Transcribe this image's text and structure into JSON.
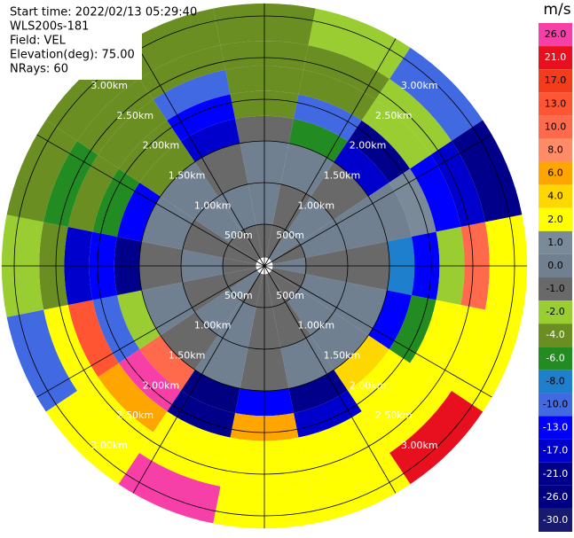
{
  "chart_data": {
    "type": "ppi",
    "header": [
      "Start time: 2022/02/13 05:29:40",
      "WLS200s-181",
      "Field: VEL",
      "Elevation(deg): 75.00",
      "NRays: 60"
    ],
    "colorbar_title": "m/s",
    "range_rings": [
      {
        "value": 0.5,
        "label": "500m"
      },
      {
        "value": 1.0,
        "label": "1.00km"
      },
      {
        "value": 1.5,
        "label": "1.50km"
      },
      {
        "value": 2.0,
        "label": "2.00km"
      },
      {
        "value": 2.5,
        "label": "2.50km"
      },
      {
        "value": 3.0,
        "label": "3.00km"
      }
    ],
    "gates_km": [
      0.1,
      0.5,
      1.0,
      1.5,
      1.8,
      2.1,
      2.4,
      2.7,
      3.15
    ],
    "values": [
      [
        -1,
        -1,
        0,
        -1,
        0,
        -1,
        -1,
        -1,
        -1,
        -1,
        0,
        -1,
        -1,
        -1,
        -1,
        -1
      ],
      [
        0,
        -1,
        0,
        0,
        -1,
        0,
        0,
        -1,
        -1,
        0,
        0,
        -1,
        0,
        -1,
        0,
        0
      ],
      [
        0,
        0,
        -1,
        0,
        -1,
        0,
        0,
        0,
        -1,
        0,
        -1,
        0,
        -1,
        0,
        0,
        -1
      ],
      [
        -1,
        -6,
        -17,
        0,
        -8,
        -13,
        4,
        -21,
        -13,
        -26,
        10,
        -2,
        -21,
        -13,
        -4,
        -17
      ],
      [
        -4,
        -10,
        -21,
        1,
        -13,
        -6,
        2,
        -17,
        6,
        -21,
        26,
        -10,
        -13,
        -6,
        -4,
        -13
      ],
      [
        -4,
        -4,
        -2,
        -13,
        -2,
        2,
        2,
        2,
        2,
        2,
        6,
        13,
        -17,
        -4,
        -4,
        -10
      ],
      [
        -4,
        -4,
        -2,
        -17,
        10,
        2,
        2,
        2,
        2,
        2,
        2,
        2,
        -4,
        -6,
        -4,
        -4
      ],
      [
        -4,
        -2,
        -10,
        -21,
        2,
        2,
        21,
        2,
        2,
        26,
        2,
        -10,
        -2,
        -4,
        -4,
        -4
      ]
    ],
    "colorbar": {
      "ticks": [
        {
          "value": 26,
          "label": "26.0"
        },
        {
          "value": 21,
          "label": "21.0"
        },
        {
          "value": 17,
          "label": "17.0"
        },
        {
          "value": 13,
          "label": "13.0"
        },
        {
          "value": 10,
          "label": "10.0"
        },
        {
          "value": 8,
          "label": "8.0"
        },
        {
          "value": 6,
          "label": "6.0"
        },
        {
          "value": 4,
          "label": "4.0"
        },
        {
          "value": 2,
          "label": "2.0"
        },
        {
          "value": 1,
          "label": "1.0"
        },
        {
          "value": 0,
          "label": "0.0"
        },
        {
          "value": -1,
          "label": "-1.0"
        },
        {
          "value": -2,
          "label": "-2.0"
        },
        {
          "value": -4,
          "label": "-4.0"
        },
        {
          "value": -6,
          "label": "-6.0"
        },
        {
          "value": -8,
          "label": "-8.0"
        },
        {
          "value": -10,
          "label": "-10.0"
        },
        {
          "value": -13,
          "label": "-13.0"
        },
        {
          "value": -17,
          "label": "-17.0"
        },
        {
          "value": -21,
          "label": "-21.0"
        },
        {
          "value": -26,
          "label": "-26.0"
        },
        {
          "value": -30,
          "label": "-30.0"
        }
      ],
      "colors": [
        "#f73fa8",
        "#e8101e",
        "#f23c1c",
        "#ff5533",
        "#ff6a4d",
        "#ff8c66",
        "#ffa500",
        "#ffd700",
        "#ffff00",
        "#7a8a99",
        "#708090",
        "#696969",
        "#9acd32",
        "#6b8e23",
        "#228b22",
        "#1e7fcc",
        "#4169e1",
        "#0000ff",
        "#0000cd",
        "#00008b",
        "#000080",
        "#191970"
      ]
    }
  }
}
